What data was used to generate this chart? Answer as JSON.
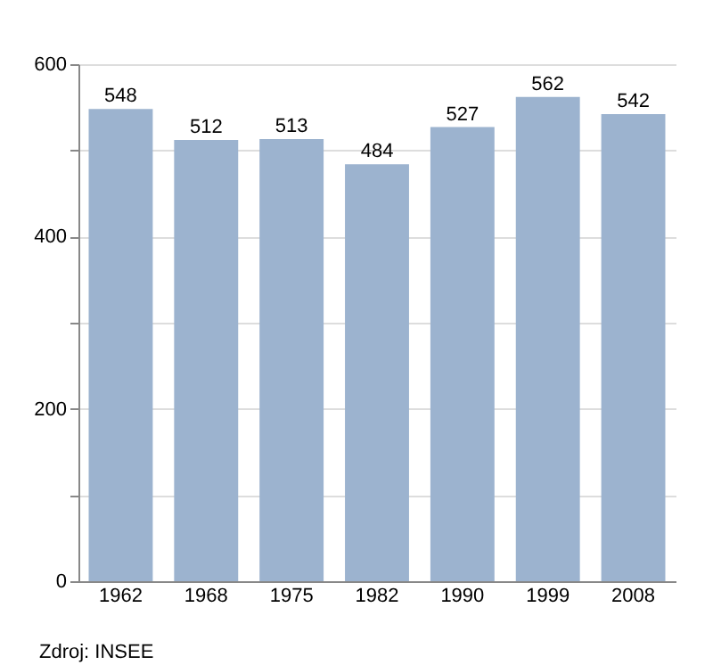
{
  "chart_data": {
    "type": "bar",
    "categories": [
      "1962",
      "1968",
      "1975",
      "1982",
      "1990",
      "1999",
      "2008"
    ],
    "values": [
      548,
      512,
      513,
      484,
      527,
      562,
      542
    ],
    "color": "#9cb3cf",
    "ylim": [
      0,
      600
    ],
    "yticks": [
      0,
      {
        "value": 100,
        "label": null
      },
      200,
      {
        "value": 300,
        "label": null
      },
      400,
      {
        "value": 500,
        "label": null
      },
      600
    ],
    "grid": "y",
    "data_labels": true,
    "annotations": [
      "Zdroj: INSEE"
    ]
  }
}
